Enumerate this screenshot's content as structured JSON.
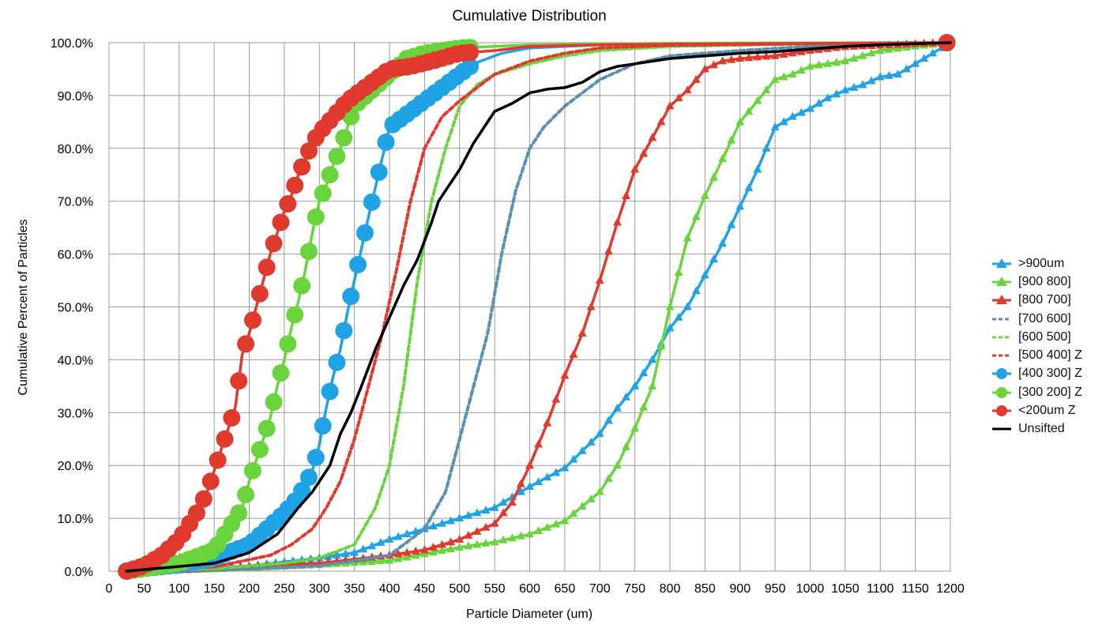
{
  "chart_data": {
    "type": "line",
    "title": "Cumulative Distribution",
    "xlabel": "Particle Diameter (um)",
    "ylabel": "Cumulative Percent of Particles",
    "xlim": [
      0,
      1200
    ],
    "ylim": [
      0,
      100
    ],
    "x_ticks": [
      "0",
      "50",
      "100",
      "150",
      "200",
      "250",
      "300",
      "350",
      "400",
      "450",
      "500",
      "550",
      "600",
      "650",
      "700",
      "750",
      "800",
      "850",
      "900",
      "950",
      "1000",
      "1050",
      "1100",
      "1150",
      "1200"
    ],
    "y_ticks": [
      "0.0%",
      "10.0%",
      "20.0%",
      "30.0%",
      "40.0%",
      "50.0%",
      "60.0%",
      "70.0%",
      "80.0%",
      "90.0%",
      "100.0%"
    ],
    "grid": true,
    "legend_position": "right",
    "series": [
      {
        "name": ">900um",
        "color": "#1fa2e6",
        "marker": "triangle",
        "dash": "solid",
        "points": [
          [
            25,
            0
          ],
          [
            100,
            0.3
          ],
          [
            200,
            1
          ],
          [
            300,
            2.5
          ],
          [
            350,
            3.5
          ],
          [
            400,
            6
          ],
          [
            450,
            8
          ],
          [
            500,
            10
          ],
          [
            550,
            12
          ],
          [
            575,
            14
          ],
          [
            600,
            16
          ],
          [
            650,
            19.5
          ],
          [
            700,
            26
          ],
          [
            720,
            30
          ],
          [
            750,
            35
          ],
          [
            775,
            40
          ],
          [
            800,
            46
          ],
          [
            825,
            50
          ],
          [
            850,
            56
          ],
          [
            875,
            62
          ],
          [
            900,
            69
          ],
          [
            925,
            76
          ],
          [
            950,
            84
          ],
          [
            975,
            86
          ],
          [
            1000,
            87.5
          ],
          [
            1025,
            89.5
          ],
          [
            1050,
            91
          ],
          [
            1075,
            92
          ],
          [
            1100,
            93.5
          ],
          [
            1125,
            94
          ],
          [
            1150,
            96
          ],
          [
            1175,
            98
          ],
          [
            1200,
            100
          ]
        ]
      },
      {
        "name": "[900 800]",
        "color": "#6ad43c",
        "marker": "triangle",
        "dash": "solid",
        "points": [
          [
            25,
            0
          ],
          [
            100,
            0.2
          ],
          [
            200,
            0.6
          ],
          [
            300,
            1.2
          ],
          [
            400,
            2
          ],
          [
            500,
            4.5
          ],
          [
            550,
            5.5
          ],
          [
            600,
            7
          ],
          [
            650,
            9.5
          ],
          [
            700,
            15
          ],
          [
            725,
            20
          ],
          [
            750,
            27
          ],
          [
            775,
            35
          ],
          [
            800,
            50
          ],
          [
            825,
            63
          ],
          [
            850,
            71
          ],
          [
            875,
            78
          ],
          [
            900,
            85
          ],
          [
            925,
            89
          ],
          [
            950,
            93
          ],
          [
            975,
            94
          ],
          [
            1000,
            95.5
          ],
          [
            1025,
            96
          ],
          [
            1050,
            96.5
          ],
          [
            1075,
            97.5
          ],
          [
            1100,
            98.5
          ],
          [
            1150,
            99.3
          ],
          [
            1200,
            100
          ]
        ]
      },
      {
        "name": "[800 700]",
        "color": "#e03a2e",
        "marker": "triangle",
        "dash": "solid",
        "points": [
          [
            25,
            0
          ],
          [
            100,
            0.2
          ],
          [
            200,
            0.8
          ],
          [
            300,
            1.5
          ],
          [
            400,
            3
          ],
          [
            450,
            4
          ],
          [
            500,
            6
          ],
          [
            550,
            9
          ],
          [
            575,
            13
          ],
          [
            600,
            20
          ],
          [
            625,
            28
          ],
          [
            650,
            37
          ],
          [
            675,
            45
          ],
          [
            700,
            55
          ],
          [
            725,
            66
          ],
          [
            750,
            76
          ],
          [
            775,
            82
          ],
          [
            800,
            88
          ],
          [
            825,
            91
          ],
          [
            850,
            95
          ],
          [
            875,
            96.5
          ],
          [
            900,
            97
          ],
          [
            950,
            97.5
          ],
          [
            1000,
            98.5
          ],
          [
            1050,
            99.2
          ],
          [
            1100,
            99.5
          ],
          [
            1150,
            99.8
          ],
          [
            1200,
            100
          ]
        ]
      },
      {
        "name": "[700 600]",
        "color": "#5b8fb4",
        "marker": "none",
        "dash": "dashed",
        "points": [
          [
            25,
            0
          ],
          [
            150,
            0.2
          ],
          [
            300,
            1
          ],
          [
            400,
            3
          ],
          [
            450,
            8
          ],
          [
            480,
            15
          ],
          [
            500,
            25
          ],
          [
            520,
            35
          ],
          [
            540,
            45
          ],
          [
            560,
            60
          ],
          [
            580,
            72
          ],
          [
            600,
            80
          ],
          [
            620,
            84
          ],
          [
            650,
            88
          ],
          [
            700,
            93
          ],
          [
            750,
            96
          ],
          [
            800,
            97.5
          ],
          [
            900,
            98.5
          ],
          [
            1000,
            99.3
          ],
          [
            1100,
            99.8
          ],
          [
            1200,
            100
          ]
        ]
      },
      {
        "name": "[600 500]",
        "color": "#6ad43c",
        "marker": "none",
        "dash": "dashed",
        "points": [
          [
            25,
            0
          ],
          [
            150,
            0.5
          ],
          [
            250,
            1.5
          ],
          [
            300,
            2.5
          ],
          [
            350,
            5
          ],
          [
            380,
            12
          ],
          [
            400,
            20
          ],
          [
            420,
            35
          ],
          [
            440,
            55
          ],
          [
            460,
            70
          ],
          [
            480,
            80
          ],
          [
            500,
            88
          ],
          [
            525,
            92
          ],
          [
            550,
            94
          ],
          [
            600,
            96
          ],
          [
            650,
            97.5
          ],
          [
            700,
            98.5
          ],
          [
            800,
            99.3
          ],
          [
            1000,
            99.8
          ],
          [
            1200,
            100
          ]
        ]
      },
      {
        "name": "[500 400] Z",
        "color": "#e03a2e",
        "marker": "none",
        "dash": "dashed",
        "points": [
          [
            25,
            0
          ],
          [
            150,
            0.8
          ],
          [
            230,
            3
          ],
          [
            260,
            5
          ],
          [
            290,
            8
          ],
          [
            310,
            12
          ],
          [
            330,
            17
          ],
          [
            350,
            25
          ],
          [
            370,
            35
          ],
          [
            390,
            45
          ],
          [
            410,
            57
          ],
          [
            430,
            70
          ],
          [
            450,
            80
          ],
          [
            475,
            86
          ],
          [
            500,
            89
          ],
          [
            550,
            94
          ],
          [
            600,
            96.5
          ],
          [
            650,
            98
          ],
          [
            700,
            99
          ],
          [
            800,
            99.5
          ],
          [
            1000,
            99.8
          ],
          [
            1200,
            100
          ]
        ]
      },
      {
        "name": "[400 300] Z",
        "color": "#1fa2e6",
        "marker": "circle",
        "dash": "solid",
        "points": [
          [
            25,
            0
          ],
          [
            50,
            0.5
          ],
          [
            100,
            1.2
          ],
          [
            150,
            2.5
          ],
          [
            200,
            5
          ],
          [
            250,
            11
          ],
          [
            270,
            14
          ],
          [
            290,
            19
          ],
          [
            300,
            24
          ],
          [
            310,
            31
          ],
          [
            320,
            37
          ],
          [
            330,
            42
          ],
          [
            340,
            49
          ],
          [
            350,
            55
          ],
          [
            360,
            61
          ],
          [
            370,
            67
          ],
          [
            400,
            84
          ],
          [
            430,
            87
          ],
          [
            450,
            89
          ],
          [
            480,
            92
          ],
          [
            520,
            96
          ],
          [
            560,
            98
          ],
          [
            600,
            99
          ],
          [
            700,
            99.6
          ],
          [
            800,
            99.8
          ],
          [
            1000,
            99.9
          ],
          [
            1200,
            100
          ]
        ]
      },
      {
        "name": "[300 200] Z",
        "color": "#6ad43c",
        "marker": "circle",
        "dash": "solid",
        "points": [
          [
            25,
            0
          ],
          [
            100,
            1.5
          ],
          [
            150,
            4
          ],
          [
            170,
            8
          ],
          [
            190,
            12
          ],
          [
            200,
            17
          ],
          [
            210,
            21
          ],
          [
            220,
            25
          ],
          [
            230,
            29
          ],
          [
            240,
            35
          ],
          [
            250,
            40
          ],
          [
            260,
            46
          ],
          [
            270,
            51
          ],
          [
            280,
            57
          ],
          [
            290,
            64
          ],
          [
            300,
            70
          ],
          [
            310,
            73
          ],
          [
            320,
            77
          ],
          [
            330,
            80
          ],
          [
            340,
            84
          ],
          [
            350,
            88
          ],
          [
            375,
            91
          ],
          [
            400,
            94
          ],
          [
            425,
            97
          ],
          [
            450,
            98
          ],
          [
            500,
            99
          ],
          [
            600,
            99.6
          ],
          [
            800,
            99.9
          ],
          [
            1200,
            100
          ]
        ]
      },
      {
        "name": "<200um  Z",
        "color": "#e03a2e",
        "marker": "circle",
        "dash": "solid",
        "points": [
          [
            25,
            0
          ],
          [
            50,
            1
          ],
          [
            75,
            3
          ],
          [
            100,
            6
          ],
          [
            125,
            11
          ],
          [
            140,
            15
          ],
          [
            150,
            19
          ],
          [
            160,
            23
          ],
          [
            170,
            27
          ],
          [
            180,
            31
          ],
          [
            190,
            41
          ],
          [
            200,
            45
          ],
          [
            210,
            50
          ],
          [
            220,
            55
          ],
          [
            230,
            60
          ],
          [
            240,
            64
          ],
          [
            250,
            68
          ],
          [
            260,
            71
          ],
          [
            270,
            75
          ],
          [
            280,
            78
          ],
          [
            290,
            81
          ],
          [
            300,
            83
          ],
          [
            320,
            86
          ],
          [
            340,
            89
          ],
          [
            360,
            91
          ],
          [
            380,
            93
          ],
          [
            400,
            95
          ],
          [
            430,
            95.5
          ],
          [
            460,
            96.5
          ],
          [
            500,
            98
          ],
          [
            550,
            98.5
          ],
          [
            600,
            99.3
          ],
          [
            700,
            99.6
          ],
          [
            900,
            99.8
          ],
          [
            1200,
            100
          ]
        ]
      },
      {
        "name": "Unsifted",
        "color": "#000000",
        "marker": "none",
        "dash": "solid",
        "points": [
          [
            25,
            0
          ],
          [
            150,
            1.5
          ],
          [
            200,
            3.5
          ],
          [
            240,
            7
          ],
          [
            270,
            12
          ],
          [
            290,
            15
          ],
          [
            300,
            17
          ],
          [
            315,
            20
          ],
          [
            330,
            26
          ],
          [
            345,
            30
          ],
          [
            360,
            35
          ],
          [
            380,
            42
          ],
          [
            400,
            48
          ],
          [
            420,
            54
          ],
          [
            440,
            59
          ],
          [
            460,
            66
          ],
          [
            470,
            70
          ],
          [
            480,
            72
          ],
          [
            500,
            76
          ],
          [
            520,
            81
          ],
          [
            550,
            87
          ],
          [
            575,
            88.5
          ],
          [
            600,
            90.5
          ],
          [
            625,
            91.2
          ],
          [
            650,
            91.5
          ],
          [
            675,
            92.5
          ],
          [
            700,
            94.5
          ],
          [
            725,
            95.5
          ],
          [
            750,
            96
          ],
          [
            800,
            97
          ],
          [
            850,
            97.5
          ],
          [
            900,
            98
          ],
          [
            950,
            98.3
          ],
          [
            1000,
            98.8
          ],
          [
            1050,
            99.3
          ],
          [
            1100,
            99.6
          ],
          [
            1150,
            99.8
          ],
          [
            1200,
            100
          ]
        ]
      }
    ]
  }
}
